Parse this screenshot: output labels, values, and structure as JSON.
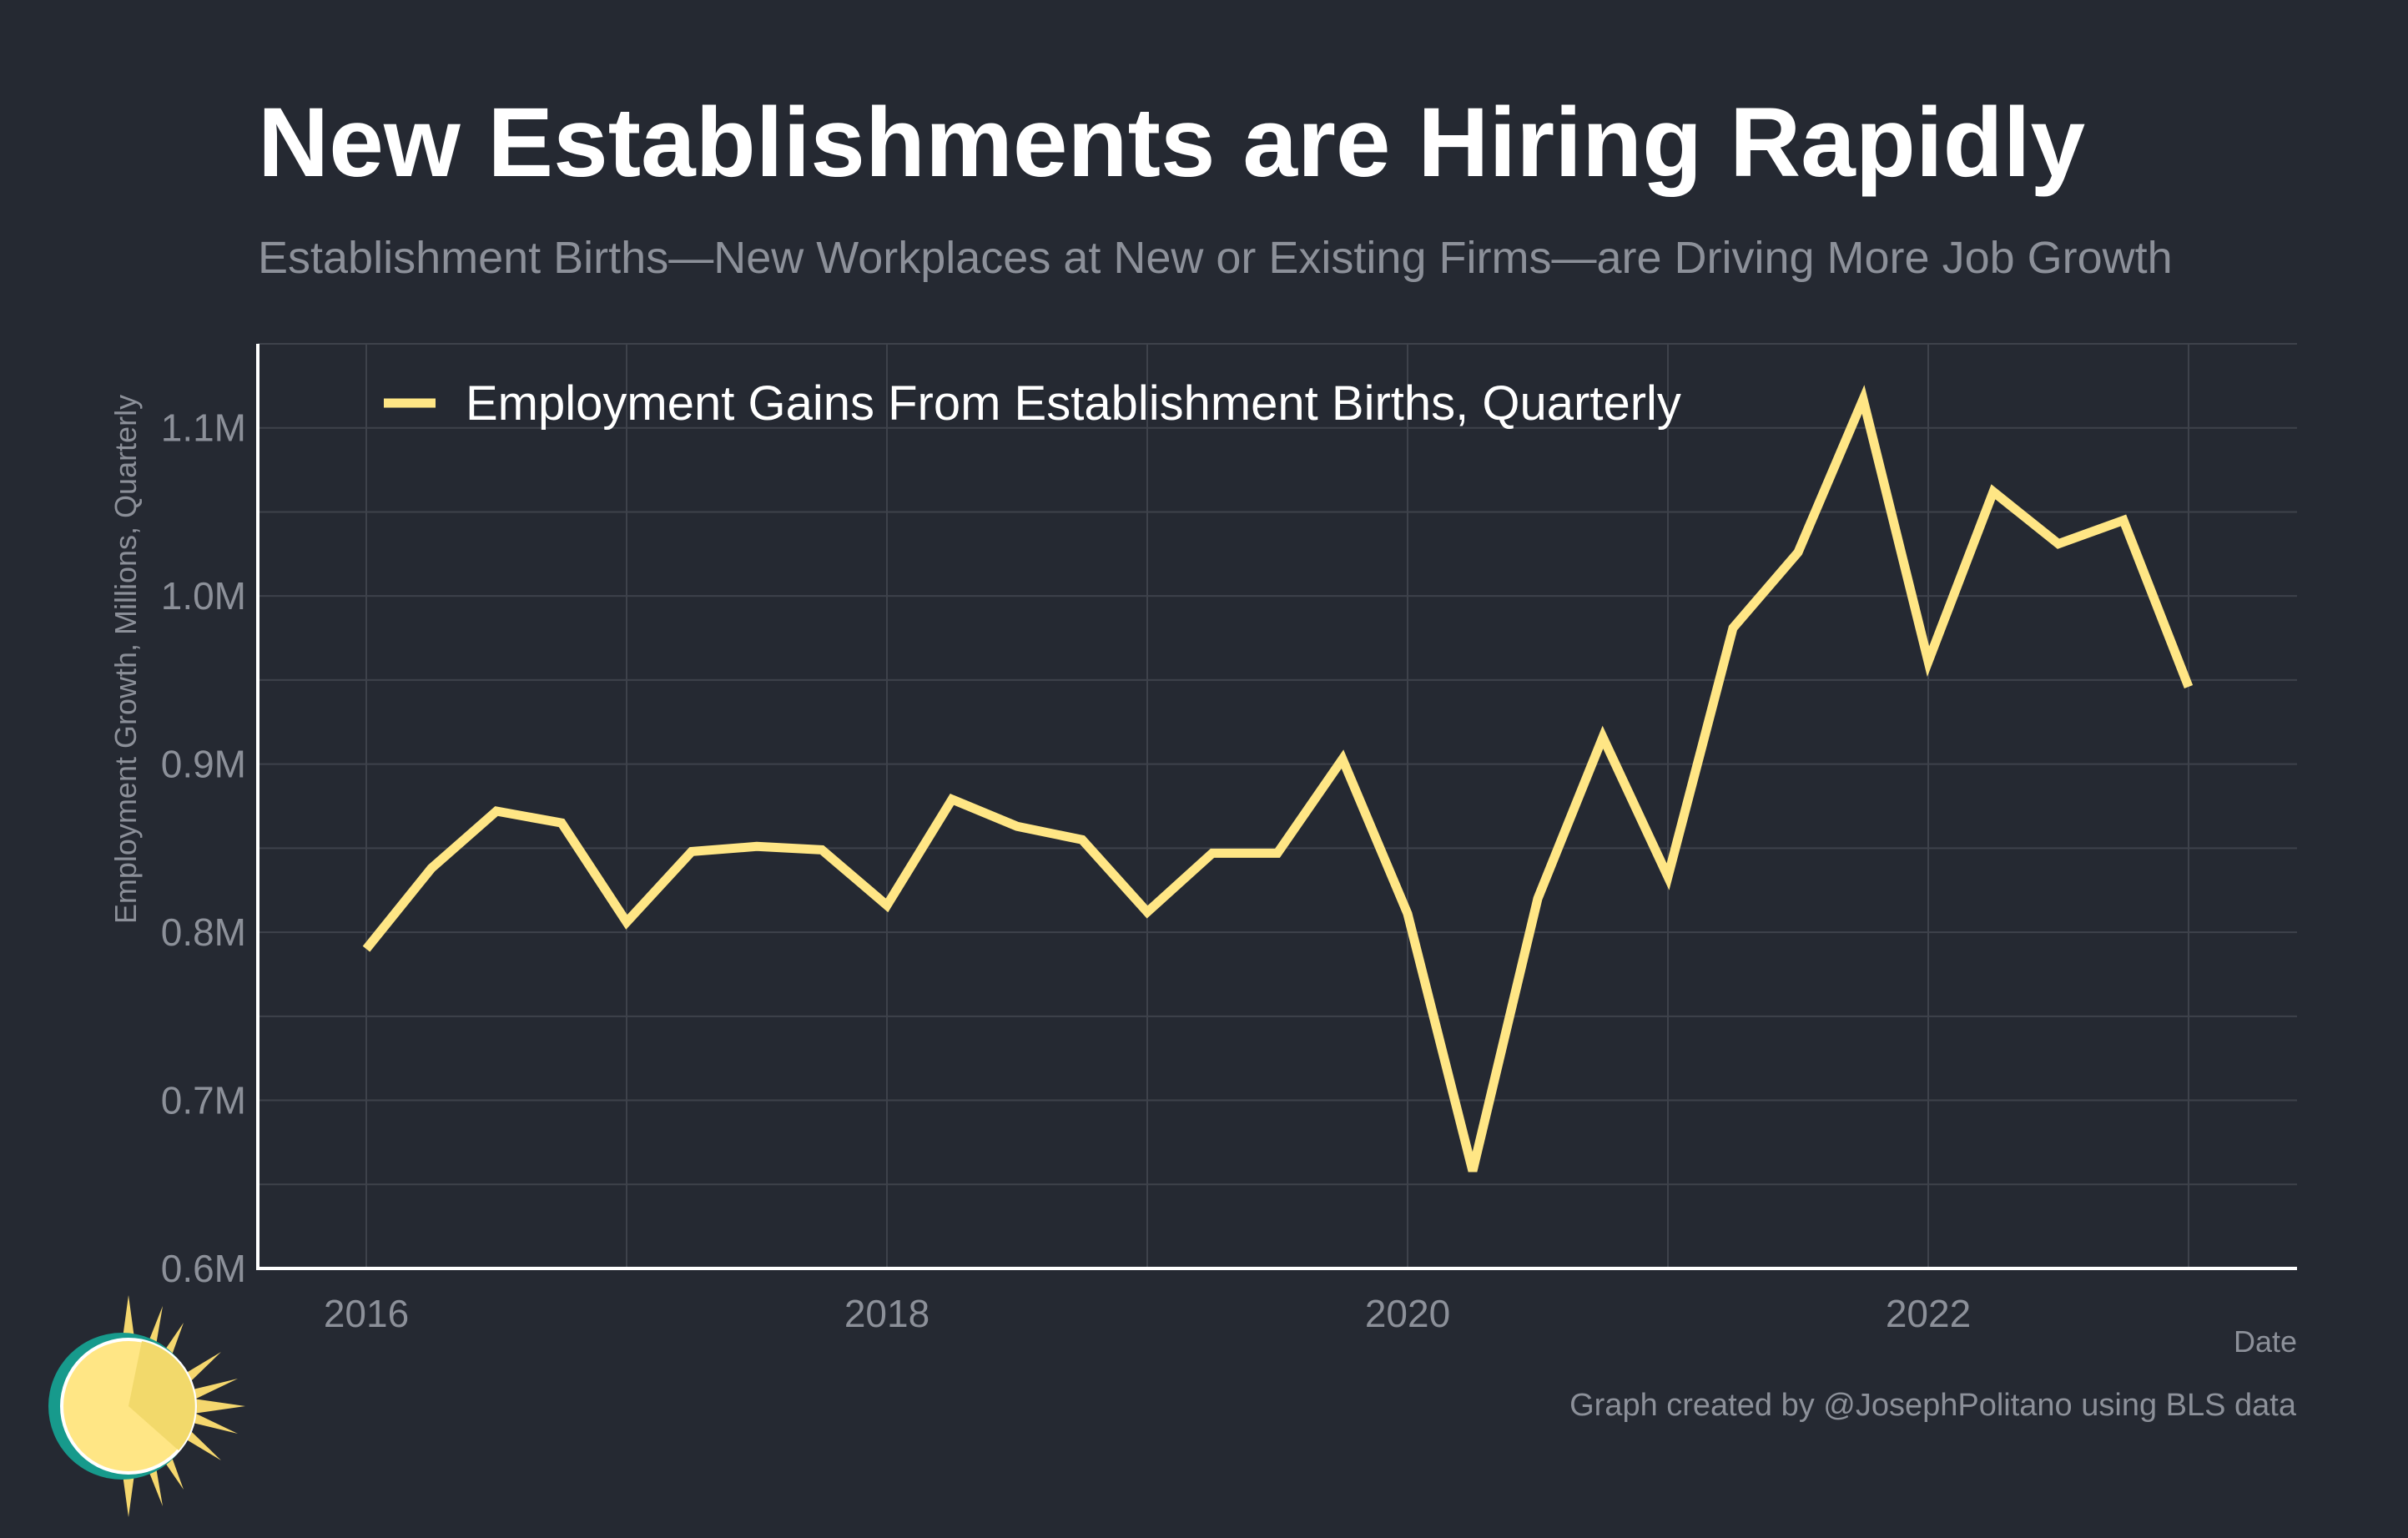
{
  "colors": {
    "background": "#252932",
    "line": "#ffe685",
    "grid": "#3e424b",
    "axis": "#ffffff",
    "muted": "#8c9099"
  },
  "footer": {
    "credit": "Graph created by @JosephPolitano using BLS data"
  },
  "logo": {
    "icon": "sun-logo-icon"
  },
  "chart_data": {
    "type": "line",
    "title": "New Establishments are Hiring Rapidly",
    "subtitle": "Establishment Births—New Workplaces at New or Existing Firms—are Driving More Job Growth",
    "xlabel": "Date",
    "ylabel": "Employment Growth, Millions, Quarterly",
    "ylim": [
      0.6,
      1.15
    ],
    "yticks": [
      0.6,
      0.7,
      0.8,
      0.9,
      1.0,
      1.1
    ],
    "ytick_labels": [
      "0.6M",
      "0.7M",
      "0.8M",
      "0.9M",
      "1.0M",
      "1.1M"
    ],
    "xlim": [
      "2015-08",
      "2023-06"
    ],
    "xticks": [
      "2016",
      "2018",
      "2020",
      "2022"
    ],
    "grid": true,
    "legend_position": "top-left",
    "series": [
      {
        "name": "Employment Gains From Establishment Births, Quarterly",
        "x": [
          "2016-Q1",
          "2016-Q2",
          "2016-Q3",
          "2016-Q4",
          "2017-Q1",
          "2017-Q2",
          "2017-Q3",
          "2017-Q4",
          "2018-Q1",
          "2018-Q2",
          "2018-Q3",
          "2018-Q4",
          "2019-Q1",
          "2019-Q2",
          "2019-Q3",
          "2019-Q4",
          "2020-Q1",
          "2020-Q2",
          "2020-Q3",
          "2020-Q4",
          "2021-Q1",
          "2021-Q2",
          "2021-Q3",
          "2021-Q4",
          "2022-Q1",
          "2022-Q2",
          "2022-Q3",
          "2022-Q4",
          "2023-Q1"
        ],
        "values": [
          0.79,
          0.838,
          0.872,
          0.865,
          0.806,
          0.848,
          0.851,
          0.849,
          0.816,
          0.879,
          0.863,
          0.855,
          0.812,
          0.847,
          0.847,
          0.903,
          0.811,
          0.658,
          0.82,
          0.916,
          0.833,
          0.981,
          1.026,
          1.117,
          0.961,
          1.062,
          1.031,
          1.045,
          0.946
        ]
      }
    ]
  }
}
